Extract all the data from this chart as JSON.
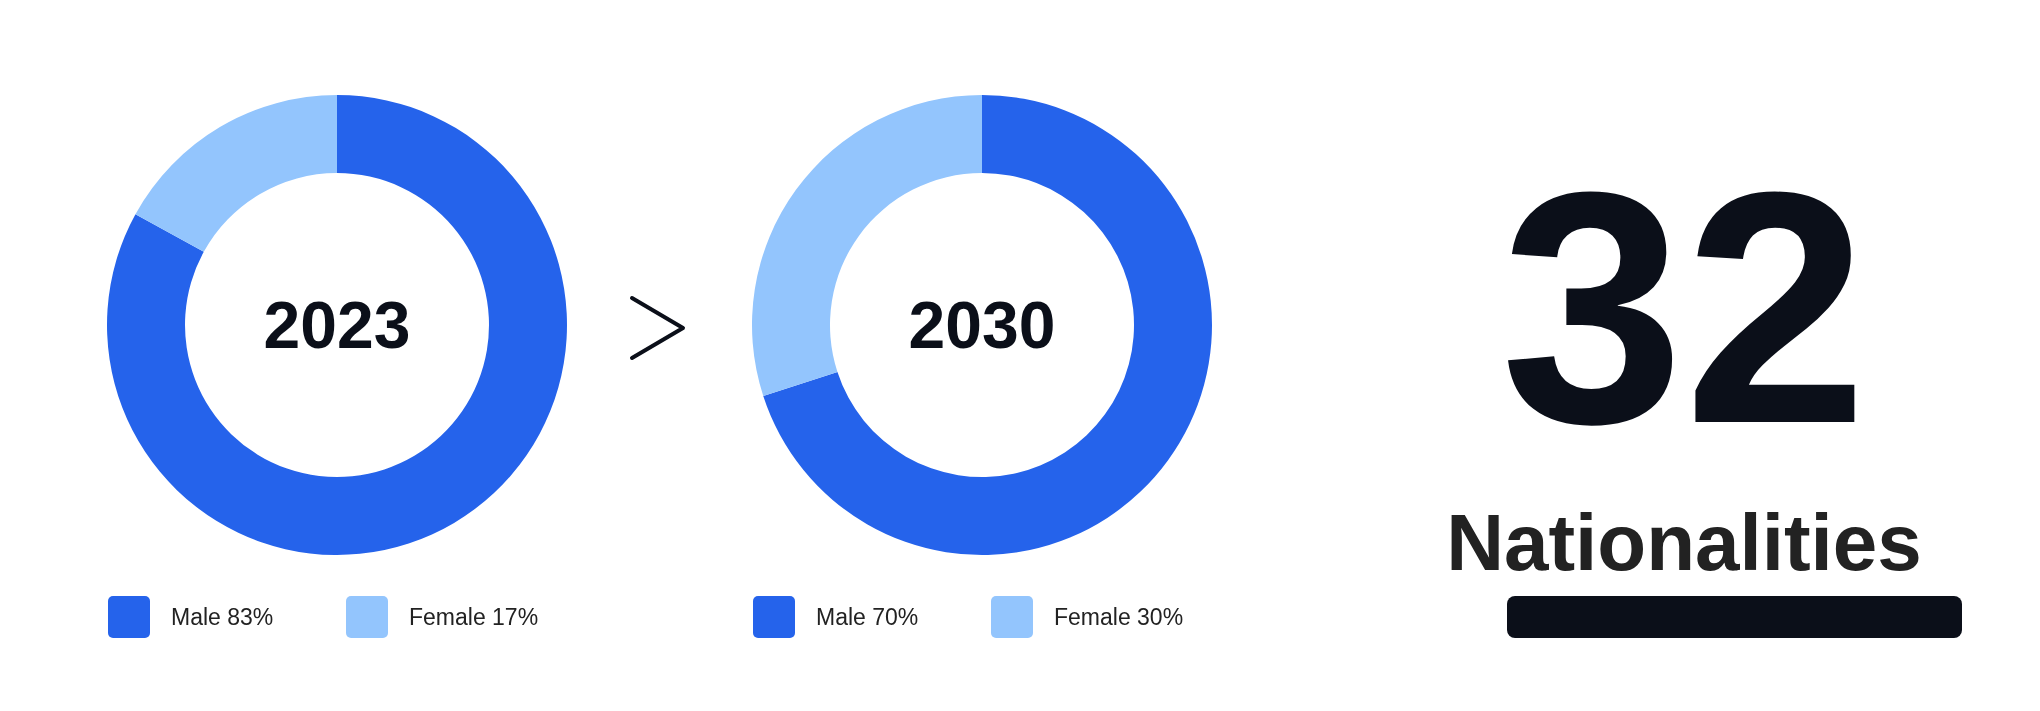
{
  "chart_data": [
    {
      "type": "donut",
      "title": "2023",
      "categories": [
        "Male 83%",
        "Female 17%"
      ],
      "values": [
        83,
        17
      ],
      "colors": [
        "#2563eb",
        "#93c5fd"
      ],
      "legend": "bottom"
    },
    {
      "type": "donut",
      "title": "2030",
      "categories": [
        "Male 70%",
        "Female 30%"
      ],
      "values": [
        70,
        30
      ],
      "colors": [
        "#2563eb",
        "#93c5fd"
      ],
      "legend": "bottom"
    },
    {
      "type": "other",
      "title": "32",
      "subtitle": "Nationalities"
    }
  ]
}
